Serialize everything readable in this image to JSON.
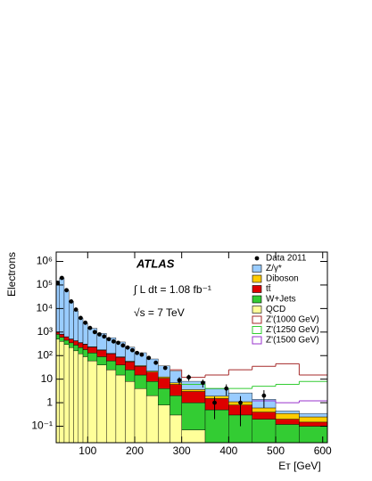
{
  "chart_data": {
    "type": "histogram",
    "y_label": "Electrons",
    "x_label": "Eᴛ [GeV]",
    "annotations": [
      "ATLAS",
      "∫ L dt = 1.08 fb⁻¹",
      "√s = 7 TeV"
    ],
    "log_y": true,
    "xlim": [
      33,
      610
    ],
    "xticks": [
      100,
      200,
      300,
      400,
      500,
      600
    ],
    "ylim": [
      0.02,
      2500000
    ],
    "yticks": [
      {
        "value": 0.1,
        "label": "10⁻¹"
      },
      1,
      10,
      {
        "value": 100,
        "label": "10²"
      },
      {
        "value": 1000,
        "label": "10³"
      },
      {
        "value": 10000,
        "label": "10⁴"
      },
      {
        "value": 100000,
        "label": "10⁵"
      },
      {
        "value": 1000000,
        "label": "10⁶"
      }
    ],
    "bins": [
      33,
      40,
      50,
      60,
      70,
      80,
      90,
      100,
      120,
      140,
      160,
      180,
      200,
      225,
      250,
      275,
      300,
      350,
      400,
      450,
      500,
      550,
      610
    ],
    "stack": [
      {
        "name": "QCD",
        "color": "#ffff99",
        "values": [
          500,
          400,
          300,
          220,
          160,
          120,
          90,
          60,
          40,
          25,
          15,
          8,
          4,
          2,
          0.8,
          0.3,
          0.07,
          0.02,
          0.01,
          0.005,
          0.003,
          0.002
        ]
      },
      {
        "name": "W+Jets",
        "color": "#33cc33",
        "values": [
          300,
          200,
          150,
          130,
          120,
          100,
          90,
          70,
          50,
          35,
          25,
          17,
          11,
          6,
          3.2,
          1.7,
          0.93,
          0.48,
          0.29,
          0.195,
          0.117,
          0.098
        ]
      },
      {
        "name": "tt̄",
        "color": "#dd0000",
        "values": [
          200,
          200,
          170,
          150,
          140,
          130,
          120,
          100,
          80,
          60,
          45,
          30,
          20,
          12,
          7,
          4,
          2,
          1,
          0.5,
          0.2,
          0.08,
          0.05
        ]
      },
      {
        "name": "Diboson",
        "color": "#ffcc00",
        "values": [
          20,
          20,
          15,
          12,
          10,
          9,
          8,
          7,
          6,
          5,
          4,
          3,
          2.5,
          2,
          1.5,
          1,
          0.6,
          0.4,
          0.3,
          0.2,
          0.15,
          0.1
        ]
      },
      {
        "name": "Z/γ*",
        "color": "#99ccff",
        "values": [
          149000,
          199000,
          59000,
          19500,
          7500,
          3600,
          2100,
          1200,
          700,
          450,
          290,
          170,
          95,
          50,
          24,
          15,
          4.5,
          2,
          1.5,
          0.8,
          0.1,
          0.1
        ]
      }
    ],
    "lines": [
      {
        "name": "Z'(1000 GeV)",
        "color": "#a52a2a",
        "values": [
          null,
          null,
          null,
          null,
          null,
          null,
          null,
          null,
          null,
          null,
          null,
          null,
          null,
          null,
          null,
          25,
          12,
          15,
          25,
          35,
          45,
          15
        ]
      },
      {
        "name": "Z'(1250 GeV)",
        "color": "#33cc33",
        "values": [
          null,
          null,
          null,
          null,
          null,
          null,
          null,
          null,
          null,
          null,
          null,
          null,
          null,
          null,
          null,
          null,
          6,
          4,
          4,
          5,
          6,
          8
        ]
      },
      {
        "name": "Z'(1500 GeV)",
        "color": "#9933cc",
        "values": [
          null,
          null,
          null,
          null,
          null,
          null,
          null,
          null,
          null,
          null,
          null,
          null,
          null,
          null,
          null,
          null,
          null,
          null,
          null,
          1.2,
          1,
          1.2
        ]
      }
    ],
    "data": {
      "name": "Data 2011",
      "x": [
        36,
        45,
        55,
        65,
        75,
        85,
        95,
        105,
        115,
        125,
        135,
        145,
        155,
        165,
        175,
        185,
        195,
        205,
        215,
        230,
        245,
        265,
        295,
        315,
        345,
        370,
        395,
        425,
        475
      ],
      "values": [
        120000,
        200000,
        60000,
        20000,
        9000,
        4000,
        2500,
        1500,
        1000,
        800,
        650,
        500,
        400,
        350,
        270,
        220,
        170,
        130,
        110,
        80,
        50,
        30,
        9,
        12,
        7,
        1,
        4,
        1,
        2
      ],
      "errors": [
        null,
        null,
        null,
        null,
        null,
        null,
        null,
        null,
        null,
        null,
        null,
        null,
        null,
        null,
        null,
        null,
        null,
        null,
        null,
        null,
        null,
        null,
        3,
        3.5,
        2.6,
        0.8,
        2,
        0.9,
        1.4
      ]
    }
  }
}
